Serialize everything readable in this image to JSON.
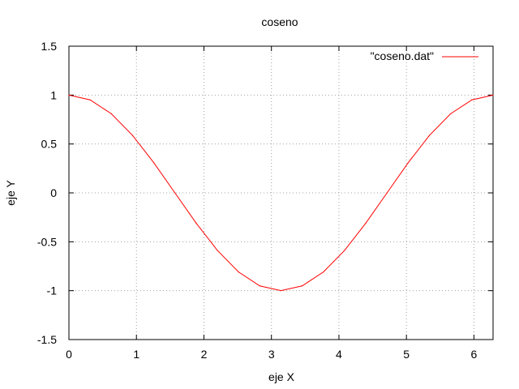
{
  "chart_data": {
    "type": "line",
    "title": "coseno",
    "xlabel": "eje X",
    "ylabel": "eje Y",
    "xlim": [
      0,
      6.2832
    ],
    "ylim": [
      -1.5,
      1.5
    ],
    "xticks": [
      0,
      1,
      2,
      3,
      4,
      5,
      6
    ],
    "xtick_labels": [
      "0",
      "1",
      "2",
      "3",
      "4",
      "5",
      "6"
    ],
    "yticks": [
      -1.5,
      -1,
      -0.5,
      0,
      0.5,
      1,
      1.5
    ],
    "ytick_labels": [
      "-1.5",
      "-1",
      "-0.5",
      "0",
      "0.5",
      "1",
      "1.5"
    ],
    "grid": true,
    "legend_position": "top-right",
    "series": [
      {
        "name": "\"coseno.dat\"",
        "color": "#ff0000",
        "x": [
          0,
          0.3142,
          0.6283,
          0.9425,
          1.2566,
          1.5708,
          1.885,
          2.1991,
          2.5133,
          2.8274,
          3.1416,
          3.4558,
          3.7699,
          4.0841,
          4.3982,
          4.7124,
          5.0265,
          5.3407,
          5.6549,
          5.969,
          6.2832
        ],
        "y": [
          1.0,
          0.951,
          0.809,
          0.588,
          0.309,
          0.0,
          -0.309,
          -0.588,
          -0.809,
          -0.951,
          -1.0,
          -0.951,
          -0.809,
          -0.588,
          -0.309,
          0.0,
          0.309,
          0.588,
          0.809,
          0.951,
          1.0
        ]
      }
    ]
  }
}
